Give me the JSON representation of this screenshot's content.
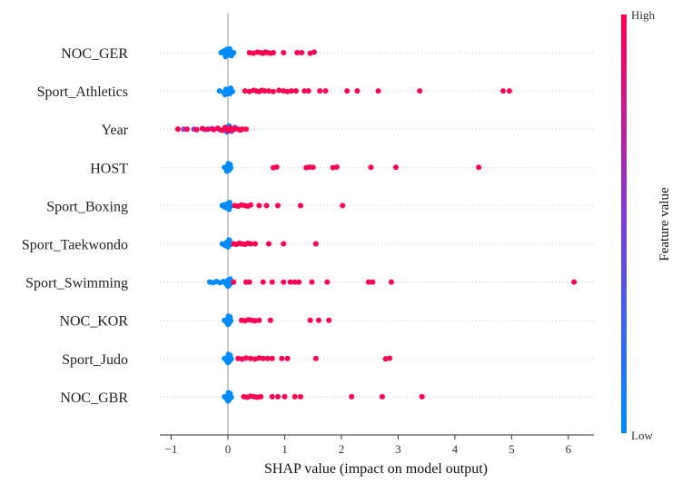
{
  "chart_data": {
    "type": "scatter",
    "subtype": "shap-beeswarm",
    "title": "",
    "xlabel": "SHAP value (impact on model output)",
    "ylabel": "",
    "xlim": [
      -1.2,
      6.45
    ],
    "xticks": [
      -1,
      0,
      1,
      2,
      3,
      4,
      5,
      6
    ],
    "xtick_labels": [
      "−1",
      "0",
      "1",
      "2",
      "3",
      "4",
      "5",
      "6"
    ],
    "grid": "dotted horizontal row guides",
    "colorbar": {
      "title": "Feature value",
      "high_label": "High",
      "low_label": "Low",
      "low_color": "#008bfb",
      "high_color": "#ff0052"
    },
    "features": [
      {
        "name": "NOC_GER",
        "low_points": [
          [
            -0.12,
            0
          ],
          [
            -0.08,
            -0.15
          ],
          [
            -0.05,
            0.15
          ],
          [
            -0.02,
            -0.3
          ],
          [
            0.0,
            0.0
          ],
          [
            0.02,
            0.2
          ],
          [
            0.05,
            -0.1
          ],
          [
            0.08,
            0.1
          ],
          [
            -0.04,
            0.35
          ],
          [
            0.03,
            -0.35
          ],
          [
            0.1,
            0.0
          ],
          [
            0.06,
            0.28
          ]
        ],
        "high_points": [
          [
            0.38,
            0
          ],
          [
            0.45,
            0.05
          ],
          [
            0.52,
            -0.05
          ],
          [
            0.58,
            0
          ],
          [
            0.62,
            0.05
          ],
          [
            0.66,
            -0.05
          ],
          [
            0.7,
            0
          ],
          [
            0.75,
            0.05
          ],
          [
            0.8,
            0
          ],
          [
            0.98,
            0
          ],
          [
            1.22,
            0
          ],
          [
            1.3,
            0
          ],
          [
            1.45,
            0.05
          ],
          [
            1.52,
            -0.05
          ]
        ],
        "mid_points": []
      },
      {
        "name": "Sport_Athletics",
        "low_points": [
          [
            -0.15,
            0
          ],
          [
            -0.08,
            0.12
          ],
          [
            -0.03,
            -0.15
          ],
          [
            0.0,
            0.0
          ],
          [
            0.03,
            0.25
          ],
          [
            0.05,
            -0.25
          ],
          [
            0.08,
            0.05
          ],
          [
            -0.05,
            0.35
          ]
        ],
        "high_points": [
          [
            0.3,
            0
          ],
          [
            0.38,
            0.05
          ],
          [
            0.45,
            -0.05
          ],
          [
            0.5,
            0
          ],
          [
            0.55,
            0.05
          ],
          [
            0.6,
            -0.05
          ],
          [
            0.65,
            0
          ],
          [
            0.72,
            0
          ],
          [
            0.8,
            0.05
          ],
          [
            0.9,
            -0.05
          ],
          [
            0.98,
            0
          ],
          [
            1.05,
            0.05
          ],
          [
            1.12,
            0
          ],
          [
            1.2,
            0
          ],
          [
            1.35,
            0
          ],
          [
            1.42,
            0
          ],
          [
            1.62,
            0
          ],
          [
            1.72,
            0
          ],
          [
            2.1,
            0
          ],
          [
            2.28,
            0
          ],
          [
            2.65,
            0
          ],
          [
            3.38,
            0
          ],
          [
            4.85,
            0
          ],
          [
            4.96,
            0
          ]
        ],
        "mid_points": []
      },
      {
        "name": "Year",
        "low_points": [
          [
            0.05,
            0.1
          ],
          [
            0.0,
            -0.2
          ],
          [
            -0.02,
            0.25
          ],
          [
            0.02,
            -0.3
          ],
          [
            0.08,
            0.0
          ]
        ],
        "high_points": [
          [
            -0.88,
            0
          ],
          [
            -0.72,
            0
          ],
          [
            -0.55,
            0.05
          ],
          [
            -0.45,
            -0.05
          ],
          [
            -0.35,
            0
          ],
          [
            -0.25,
            0.05
          ],
          [
            -0.18,
            -0.08
          ],
          [
            -0.1,
            0.12
          ],
          [
            -0.05,
            -0.15
          ],
          [
            0.0,
            0.15
          ],
          [
            0.04,
            -0.1
          ],
          [
            0.1,
            0.05
          ],
          [
            0.15,
            -0.05
          ],
          [
            0.2,
            0.05
          ],
          [
            0.25,
            0
          ],
          [
            0.32,
            0
          ]
        ],
        "mid_points": [
          [
            -0.78,
            0
          ],
          [
            -0.6,
            0
          ],
          [
            -0.4,
            0.05
          ],
          [
            -0.28,
            -0.05
          ],
          [
            -0.15,
            0.05
          ],
          [
            0.06,
            0.2
          ],
          [
            0.12,
            -0.15
          ],
          [
            0.22,
            0.1
          ]
        ]
      },
      {
        "name": "HOST",
        "low_points": [
          [
            -0.06,
            0
          ],
          [
            -0.03,
            0.15
          ],
          [
            0.0,
            -0.15
          ],
          [
            0.02,
            0.25
          ],
          [
            0.04,
            -0.25
          ],
          [
            0.05,
            0.05
          ],
          [
            -0.02,
            0.35
          ],
          [
            0.01,
            -0.35
          ]
        ],
        "high_points": [
          [
            0.8,
            0.03
          ],
          [
            0.86,
            -0.03
          ],
          [
            1.38,
            0.03
          ],
          [
            1.44,
            -0.03
          ],
          [
            1.5,
            0
          ],
          [
            1.85,
            0.03
          ],
          [
            1.92,
            -0.03
          ],
          [
            2.52,
            0
          ],
          [
            2.96,
            0
          ],
          [
            4.42,
            0
          ]
        ],
        "mid_points": []
      },
      {
        "name": "Sport_Boxing",
        "low_points": [
          [
            -0.1,
            0
          ],
          [
            -0.05,
            0.15
          ],
          [
            -0.02,
            -0.15
          ],
          [
            0.0,
            0.28
          ],
          [
            0.03,
            -0.28
          ],
          [
            0.05,
            0.05
          ],
          [
            -0.08,
            -0.05
          ],
          [
            0.02,
            0.35
          ]
        ],
        "high_points": [
          [
            0.12,
            0
          ],
          [
            0.18,
            0.05
          ],
          [
            0.24,
            -0.05
          ],
          [
            0.3,
            0
          ],
          [
            0.35,
            0.05
          ],
          [
            0.4,
            -0.05
          ],
          [
            0.55,
            0
          ],
          [
            0.68,
            0
          ],
          [
            0.88,
            0
          ],
          [
            1.28,
            0
          ],
          [
            2.02,
            0
          ]
        ],
        "mid_points": []
      },
      {
        "name": "Sport_Taekwondo",
        "low_points": [
          [
            -0.1,
            0
          ],
          [
            -0.05,
            0.15
          ],
          [
            -0.02,
            -0.15
          ],
          [
            0.0,
            0.28
          ],
          [
            0.03,
            -0.28
          ],
          [
            0.05,
            0.05
          ],
          [
            0.02,
            -0.35
          ]
        ],
        "high_points": [
          [
            0.1,
            0
          ],
          [
            0.15,
            0.05
          ],
          [
            0.2,
            -0.05
          ],
          [
            0.25,
            0
          ],
          [
            0.3,
            0.05
          ],
          [
            0.35,
            -0.05
          ],
          [
            0.4,
            0
          ],
          [
            0.48,
            0
          ],
          [
            0.72,
            0
          ],
          [
            0.98,
            0
          ],
          [
            1.55,
            0
          ]
        ],
        "mid_points": []
      },
      {
        "name": "Sport_Swimming",
        "low_points": [
          [
            -0.32,
            0
          ],
          [
            -0.26,
            0.05
          ],
          [
            -0.2,
            -0.05
          ],
          [
            -0.14,
            0.05
          ],
          [
            -0.08,
            -0.05
          ],
          [
            -0.04,
            0.15
          ],
          [
            0.0,
            -0.15
          ],
          [
            0.02,
            0.28
          ],
          [
            0.04,
            -0.28
          ],
          [
            0.06,
            0.05
          ],
          [
            0.0,
            0.38
          ]
        ],
        "high_points": [
          [
            0.1,
            0
          ],
          [
            0.32,
            0
          ],
          [
            0.38,
            0
          ],
          [
            0.62,
            0
          ],
          [
            0.78,
            0
          ],
          [
            0.98,
            0
          ],
          [
            1.1,
            0
          ],
          [
            1.18,
            0
          ],
          [
            1.25,
            0
          ],
          [
            1.48,
            0
          ],
          [
            1.75,
            0
          ],
          [
            2.48,
            0
          ],
          [
            2.55,
            0
          ],
          [
            2.88,
            0
          ],
          [
            6.1,
            0
          ]
        ],
        "mid_points": []
      },
      {
        "name": "NOC_KOR",
        "low_points": [
          [
            -0.06,
            0
          ],
          [
            -0.03,
            0.15
          ],
          [
            0.0,
            -0.15
          ],
          [
            0.02,
            0.28
          ],
          [
            0.04,
            -0.28
          ],
          [
            0.05,
            0.05
          ],
          [
            0.0,
            0.38
          ],
          [
            0.01,
            -0.38
          ]
        ],
        "high_points": [
          [
            0.24,
            0
          ],
          [
            0.3,
            0.05
          ],
          [
            0.36,
            -0.05
          ],
          [
            0.42,
            0
          ],
          [
            0.48,
            0.05
          ],
          [
            0.55,
            0
          ],
          [
            0.75,
            0
          ],
          [
            1.45,
            0
          ],
          [
            1.6,
            0
          ],
          [
            1.78,
            0
          ]
        ],
        "mid_points": []
      },
      {
        "name": "Sport_Judo",
        "low_points": [
          [
            -0.06,
            0
          ],
          [
            -0.03,
            0.15
          ],
          [
            0.0,
            -0.15
          ],
          [
            0.02,
            0.28
          ],
          [
            0.04,
            -0.28
          ],
          [
            0.06,
            0.05
          ],
          [
            0.0,
            0.38
          ],
          [
            0.01,
            -0.38
          ]
        ],
        "high_points": [
          [
            0.18,
            0
          ],
          [
            0.25,
            0.05
          ],
          [
            0.32,
            -0.05
          ],
          [
            0.4,
            0
          ],
          [
            0.48,
            0.05
          ],
          [
            0.55,
            -0.05
          ],
          [
            0.62,
            0
          ],
          [
            0.7,
            0
          ],
          [
            0.78,
            0
          ],
          [
            0.95,
            0
          ],
          [
            1.05,
            0
          ],
          [
            1.55,
            0
          ],
          [
            2.78,
            0.03
          ],
          [
            2.85,
            -0.03
          ]
        ],
        "mid_points": []
      },
      {
        "name": "NOC_GBR",
        "low_points": [
          [
            -0.06,
            0
          ],
          [
            -0.03,
            0.15
          ],
          [
            0.0,
            -0.15
          ],
          [
            0.02,
            0.28
          ],
          [
            0.04,
            -0.28
          ],
          [
            0.06,
            0.05
          ],
          [
            0.0,
            0.38
          ],
          [
            0.01,
            -0.38
          ]
        ],
        "high_points": [
          [
            0.28,
            0
          ],
          [
            0.34,
            0.05
          ],
          [
            0.4,
            -0.05
          ],
          [
            0.46,
            0
          ],
          [
            0.52,
            0.05
          ],
          [
            0.58,
            0
          ],
          [
            0.78,
            0
          ],
          [
            0.88,
            0
          ],
          [
            1.0,
            0
          ],
          [
            1.18,
            0
          ],
          [
            1.28,
            0
          ],
          [
            2.18,
            0
          ],
          [
            2.72,
            0
          ],
          [
            3.42,
            0
          ]
        ],
        "mid_points": []
      }
    ]
  }
}
